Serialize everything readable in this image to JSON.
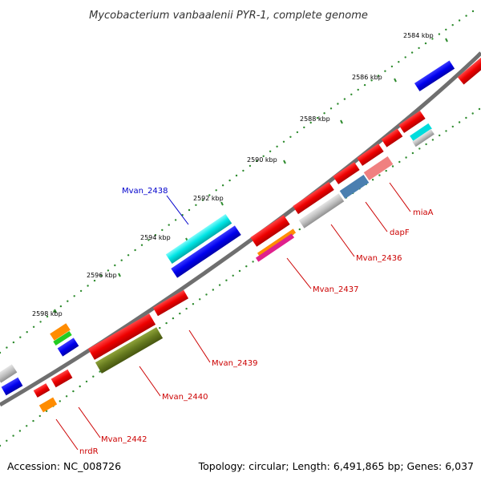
{
  "title": "Mycobacterium vanbaalenii PYR-1, complete genome",
  "footer": {
    "accession": "Accession: NC_008726",
    "info": "Topology: circular; Length: 6,491,865 bp; Genes: 6,037"
  },
  "ticks": [
    "2584 kbp",
    "2586 kbp",
    "2588 kbp",
    "2590 kbp",
    "2592 kbp",
    "2594 kbp",
    "2596 kbp",
    "2598 kbp"
  ],
  "gene_labels": [
    {
      "text": "Mvan_2438",
      "color": "#0000cc"
    },
    {
      "text": "miaA",
      "color": "#cc0000"
    },
    {
      "text": "dapF",
      "color": "#cc0000"
    },
    {
      "text": "Mvan_2436",
      "color": "#cc0000"
    },
    {
      "text": "Mvan_2437",
      "color": "#cc0000"
    },
    {
      "text": "Mvan_2439",
      "color": "#cc0000"
    },
    {
      "text": "Mvan_2440",
      "color": "#cc0000"
    },
    {
      "text": "Mvan_2442",
      "color": "#cc0000"
    },
    {
      "text": "nrdR",
      "color": "#cc0000"
    }
  ],
  "colors": {
    "backbone": "#707070",
    "tick_dots": "#2e8b2e",
    "red": "#ee0000",
    "blue": "#0000ee",
    "cyan": "#00e5e5",
    "olive": "#667a1f",
    "gray": "#c0c0c0",
    "pink": "#f08080",
    "steelblue": "#4a7fb0",
    "orange": "#ff8c00",
    "green": "#22cc22",
    "magenta": "#e0208c"
  }
}
